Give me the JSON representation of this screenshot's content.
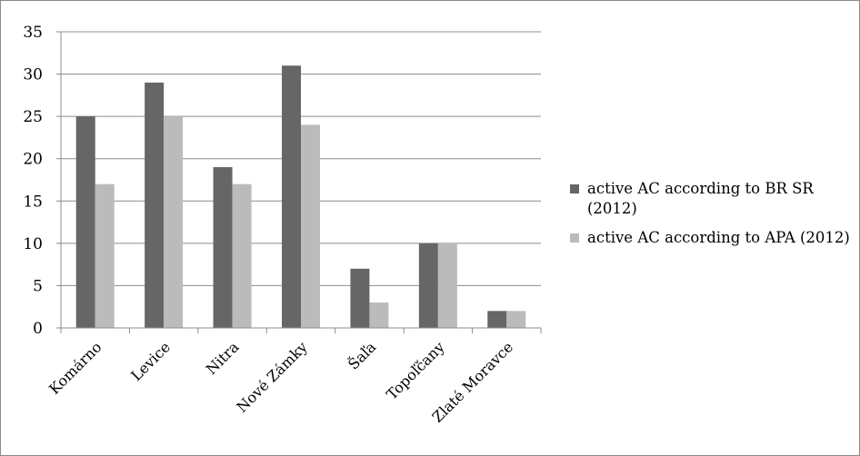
{
  "chart_data": {
    "type": "bar",
    "title": "",
    "xlabel": "",
    "ylabel": "",
    "categories": [
      "Komárno",
      "Levice",
      "Nitra",
      "Nové Zámky",
      "Šaľa",
      "Topoľčany",
      "Zlaté Moravce"
    ],
    "series": [
      {
        "name": "active AC according to BR SR (2012)",
        "color": "#666666",
        "values": [
          25,
          29,
          19,
          31,
          7,
          10,
          2
        ]
      },
      {
        "name": "active AC according to APA (2012)",
        "color": "#bbbbbb",
        "values": [
          17,
          25,
          17,
          24,
          3,
          10,
          2
        ]
      }
    ],
    "ylim": [
      0,
      35
    ],
    "yticks": [
      0,
      5,
      10,
      15,
      20,
      25,
      30,
      35
    ],
    "grid": true,
    "legend_position": "right"
  }
}
